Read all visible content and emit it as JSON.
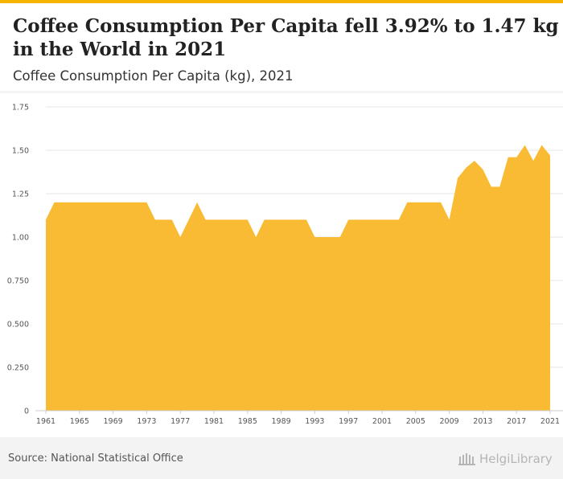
{
  "header": {
    "title": "Coffee Consumption Per Capita fell 3.92% to 1.47 kg in the World in 2021",
    "subtitle": "Coffee Consumption Per Capita (kg), 2021"
  },
  "footer": {
    "source": "Source: National Statistical Office",
    "logo_text": "HelgiLibrary"
  },
  "colors": {
    "area_fill": "#f9bb34",
    "accent": "#f4b400",
    "grid": "#e6e6e6"
  },
  "chart_data": {
    "type": "area",
    "title": "Coffee Consumption Per Capita (kg), 2021",
    "xlabel": "",
    "ylabel": "",
    "x": [
      1961,
      1962,
      1963,
      1964,
      1965,
      1966,
      1967,
      1968,
      1969,
      1970,
      1971,
      1972,
      1973,
      1974,
      1975,
      1976,
      1977,
      1978,
      1979,
      1980,
      1981,
      1982,
      1983,
      1984,
      1985,
      1986,
      1987,
      1988,
      1989,
      1990,
      1991,
      1992,
      1993,
      1994,
      1995,
      1996,
      1997,
      1998,
      1999,
      2000,
      2001,
      2002,
      2003,
      2004,
      2005,
      2006,
      2007,
      2008,
      2009,
      2010,
      2011,
      2012,
      2013,
      2014,
      2015,
      2016,
      2017,
      2018,
      2019,
      2020,
      2021
    ],
    "series": [
      {
        "name": "Coffee Consumption Per Capita (kg)",
        "values": [
          1.1,
          1.2,
          1.2,
          1.2,
          1.2,
          1.2,
          1.2,
          1.2,
          1.2,
          1.2,
          1.2,
          1.2,
          1.2,
          1.1,
          1.1,
          1.1,
          1.0,
          1.1,
          1.2,
          1.1,
          1.1,
          1.1,
          1.1,
          1.1,
          1.1,
          1.0,
          1.1,
          1.1,
          1.1,
          1.1,
          1.1,
          1.1,
          1.0,
          1.0,
          1.0,
          1.0,
          1.1,
          1.1,
          1.1,
          1.1,
          1.1,
          1.1,
          1.1,
          1.2,
          1.2,
          1.2,
          1.2,
          1.2,
          1.1,
          1.34,
          1.4,
          1.44,
          1.39,
          1.29,
          1.29,
          1.46,
          1.46,
          1.53,
          1.44,
          1.53,
          1.47
        ]
      }
    ],
    "ylim": [
      0,
      1.75
    ],
    "yticks": [
      0,
      0.25,
      0.5,
      0.75,
      1,
      1.25,
      1.5,
      1.75
    ],
    "ytick_labels": [
      "0",
      "0.250",
      "0.500",
      "0.750",
      "1.00",
      "1.25",
      "1.50",
      "1.75"
    ],
    "xticks": [
      1961,
      1965,
      1969,
      1973,
      1977,
      1981,
      1985,
      1989,
      1993,
      1997,
      2001,
      2005,
      2009,
      2013,
      2017,
      2021
    ],
    "xtick_labels": [
      "1961",
      "1965",
      "1969",
      "1973",
      "1977",
      "1981",
      "1985",
      "1989",
      "1993",
      "1997",
      "2001",
      "2005",
      "2009",
      "2013",
      "2017",
      "2021"
    ],
    "grid": true,
    "legend": "none"
  }
}
